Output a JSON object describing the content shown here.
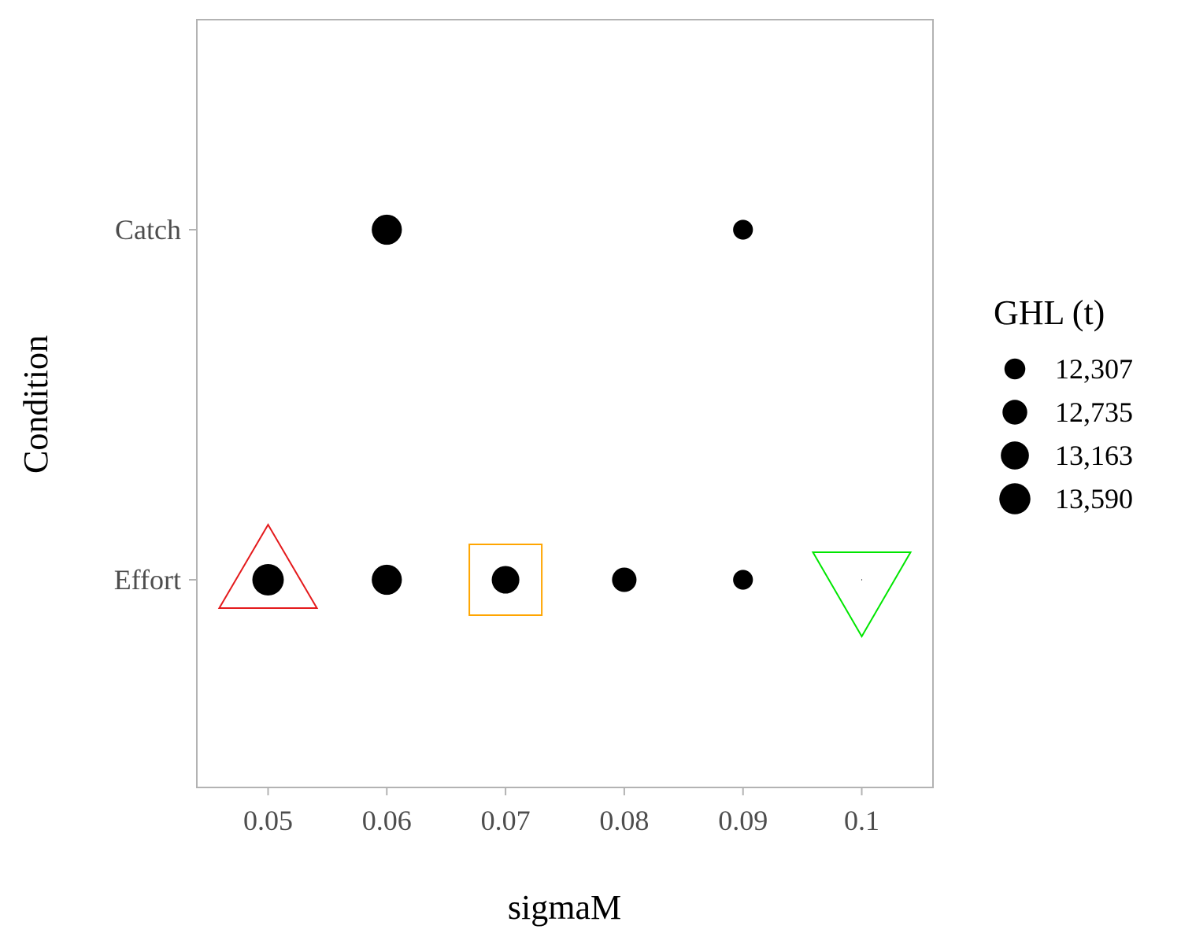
{
  "chart_data": {
    "type": "scatter",
    "title": "",
    "xlabel": "sigmaM",
    "ylabel": "Condition",
    "xlim": [
      0.044,
      0.106
    ],
    "x_ticks": [
      {
        "value": 0.05,
        "label": "0.05"
      },
      {
        "value": 0.06,
        "label": "0.06"
      },
      {
        "value": 0.07,
        "label": "0.07"
      },
      {
        "value": 0.08,
        "label": "0.08"
      },
      {
        "value": 0.09,
        "label": "0.09"
      },
      {
        "value": 0.1,
        "label": "0.1"
      }
    ],
    "categories": [
      "Catch",
      "Effort"
    ],
    "size_legend": {
      "title": "GHL (t)",
      "entries": [
        {
          "value": 12307,
          "label": "12,307"
        },
        {
          "value": 12735,
          "label": "12,735"
        },
        {
          "value": 13163,
          "label": "13,163"
        },
        {
          "value": 13590,
          "label": "13,590"
        }
      ]
    },
    "points": [
      {
        "x": 0.06,
        "condition": "Catch",
        "ghl": 13450
      },
      {
        "x": 0.09,
        "condition": "Catch",
        "ghl": 12200
      },
      {
        "x": 0.05,
        "condition": "Effort",
        "ghl": 13650
      },
      {
        "x": 0.06,
        "condition": "Effort",
        "ghl": 13450
      },
      {
        "x": 0.07,
        "condition": "Effort",
        "ghl": 13100
      },
      {
        "x": 0.08,
        "condition": "Effort",
        "ghl": 12700
      },
      {
        "x": 0.09,
        "condition": "Effort",
        "ghl": 12200
      },
      {
        "x": 0.1,
        "condition": "Effort",
        "ghl": 11250
      }
    ],
    "highlights": [
      {
        "x": 0.05,
        "condition": "Effort",
        "shape": "triangle-up",
        "color": "#e41a1c"
      },
      {
        "x": 0.07,
        "condition": "Effort",
        "shape": "square",
        "color": "#ffa500"
      },
      {
        "x": 0.1,
        "condition": "Effort",
        "shape": "triangle-down",
        "color": "#00e600"
      }
    ],
    "panel_border_color": "#b3b3b3",
    "point_color": "#000000"
  }
}
